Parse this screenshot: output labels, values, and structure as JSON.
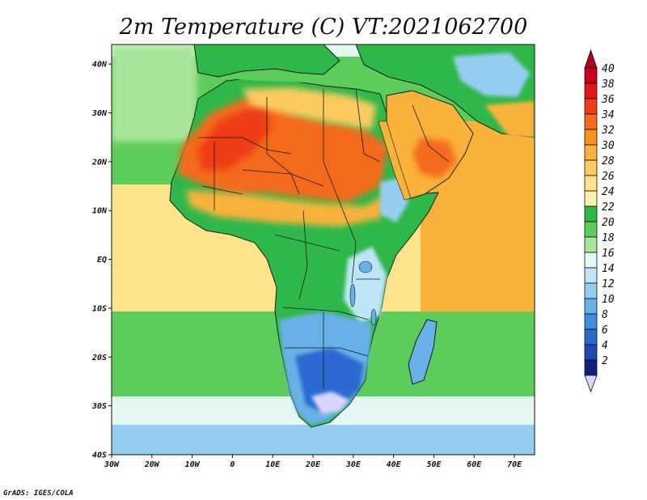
{
  "map": {
    "title": "2m Temperature (C) VT:2021062700",
    "credit": "GrADS: IGES/COLA",
    "lat_labels": [
      "40N",
      "30N",
      "20N",
      "10N",
      "EQ",
      "10S",
      "20S",
      "30S",
      "40S"
    ],
    "lon_labels": [
      "30W",
      "20W",
      "10W",
      "0",
      "10E",
      "20E",
      "30E",
      "40E",
      "50E",
      "60E",
      "70E"
    ],
    "extent": {
      "lon_min": -30,
      "lon_max": 75,
      "lat_min": -40,
      "lat_max": 44
    }
  },
  "colorbar": {
    "labels": [
      "40",
      "38",
      "36",
      "34",
      "32",
      "30",
      "28",
      "26",
      "24",
      "22",
      "20",
      "18",
      "16",
      "14",
      "12",
      "10",
      "8",
      "6",
      "4",
      "2"
    ],
    "colors": [
      "#c8001a",
      "#e01818",
      "#ee3c16",
      "#f46b1a",
      "#f7921f",
      "#f9b23a",
      "#fbcb5e",
      "#fde38a",
      "#fdf0a8",
      "#2fb84a",
      "#5ccd5a",
      "#a8e69a",
      "#e4f7f2",
      "#bfe6f6",
      "#94cdf0",
      "#67b1e8",
      "#3f8ee0",
      "#2c6ad2",
      "#1e48b2",
      "#0c2080"
    ],
    "top_arrow_color": "#a8001e",
    "bottom_arrow_color": "#dcd6ff"
  },
  "palette": {
    "ocean_cool": "#e4f7f2",
    "ocean_mild": "#5ccd5a",
    "ocean_warm": "#fde38a",
    "ocean_hot": "#fbcb5e",
    "land_green": "#2fb84a",
    "land_warm": "#f9b23a",
    "land_hot": "#f46b1a",
    "land_veryhot": "#ee3c16",
    "land_cool": "#94cdf0",
    "land_cold": "#3f8ee0",
    "land_coldest": "#dcd6ff",
    "border": "#1a1a1a"
  }
}
